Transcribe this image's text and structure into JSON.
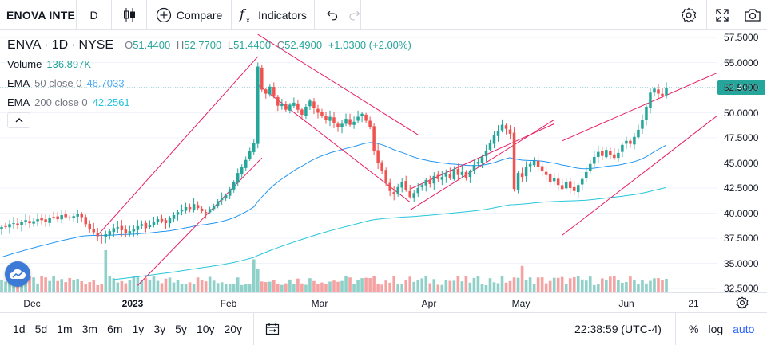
{
  "toolbar": {
    "symbol": "ENOVA INTE",
    "interval": "D",
    "candle_type_icon": "candles-icon",
    "compare_label": "Compare",
    "indicators_label": "Indicators",
    "right_icons": [
      "settings-icon",
      "fullscreen-icon",
      "camera-icon"
    ]
  },
  "legend": {
    "ticker": "ENVA",
    "timeframe": "1D",
    "exchange": "NYSE",
    "open_key": "O",
    "open": "51.4400",
    "high_key": "H",
    "high": "52.7700",
    "low_key": "L",
    "low": "51.4400",
    "close_key": "C",
    "close": "52.4900",
    "change": "+1.0300 (+2.00%)",
    "volume_label": "Volume",
    "volume_value": "136.897K",
    "ema50_label": "EMA",
    "ema50_params": "50 close 0",
    "ema50_value": "46.7033",
    "ema200_label": "EMA",
    "ema200_params": "200 close 0",
    "ema200_value": "42.2561"
  },
  "price_axis": {
    "ticks": [
      "57.5000",
      "55.0000",
      "52.5000",
      "50.0000",
      "47.5000",
      "45.0000",
      "42.5000",
      "40.0000",
      "37.5000",
      "35.0000",
      "32.5000"
    ],
    "last_price": "52.4900"
  },
  "time_axis": {
    "ticks": [
      {
        "label": "Dec",
        "bold": false
      },
      {
        "label": "2023",
        "bold": true
      },
      {
        "label": "Feb",
        "bold": false
      },
      {
        "label": "Mar",
        "bold": false
      },
      {
        "label": "Apr",
        "bold": false
      },
      {
        "label": "May",
        "bold": false
      },
      {
        "label": "Jun",
        "bold": false
      },
      {
        "label": "21",
        "bold": false
      }
    ]
  },
  "bottom_bar": {
    "ranges": [
      "1d",
      "5d",
      "1m",
      "3m",
      "6m",
      "1y",
      "3y",
      "5y",
      "10y",
      "20y"
    ],
    "clock": "22:38:59 (UTC-4)",
    "percent_label": "%",
    "log_label": "log",
    "auto_label": "auto"
  },
  "colors": {
    "up": "#26a69a",
    "down": "#ef5350",
    "ema50": "#2196f3",
    "ema200": "#26c6da",
    "trendline": "#e91e63",
    "accent": "#2962ff"
  },
  "chart_data": {
    "type": "candlestick",
    "symbol": "ENVA",
    "interval": "1D",
    "ylim": [
      32.5,
      57.5
    ],
    "y_ticks": [
      32.5,
      35,
      37.5,
      40,
      42.5,
      45,
      47.5,
      50,
      52.5,
      55,
      57.5
    ],
    "x_tick_labels": [
      "Dec",
      "2023",
      "Feb",
      "Mar",
      "Apr",
      "May",
      "Jun",
      "21"
    ],
    "last": {
      "open": 51.44,
      "high": 52.77,
      "low": 51.44,
      "close": 52.49,
      "volume": "136.897K"
    },
    "close_series": [
      38.6,
      38.7,
      38.9,
      39.0,
      38.8,
      39.1,
      39.3,
      39.0,
      39.2,
      39.4,
      39.3,
      39.1,
      39.5,
      39.6,
      39.4,
      39.8,
      39.6,
      39.5,
      39.7,
      39.9,
      39.6,
      38.9,
      38.4,
      38.1,
      37.7,
      37.6,
      37.9,
      38.2,
      38.5,
      38.6,
      38.3,
      38.0,
      38.2,
      38.4,
      38.7,
      38.9,
      38.5,
      38.8,
      39.1,
      39.4,
      39.2,
      39.0,
      39.5,
      39.8,
      40.1,
      40.3,
      40.6,
      40.4,
      40.9,
      40.5,
      40.2,
      40.0,
      40.4,
      40.7,
      41.2,
      41.5,
      41.8,
      42.4,
      43.1,
      44.0,
      44.6,
      45.3,
      46.2,
      47.0,
      54.6,
      52.3,
      51.9,
      52.6,
      51.6,
      50.7,
      50.9,
      50.3,
      50.8,
      51.0,
      50.3,
      49.8,
      50.6,
      51.2,
      50.5,
      50.0,
      49.7,
      49.3,
      49.6,
      49.0,
      48.6,
      48.9,
      49.4,
      48.8,
      49.1,
      49.6,
      49.9,
      49.2,
      48.6,
      46.2,
      45.0,
      44.2,
      43.1,
      42.2,
      41.9,
      42.6,
      43.1,
      42.3,
      41.6,
      42.0,
      42.5,
      42.8,
      43.3,
      42.9,
      43.7,
      43.4,
      43.6,
      44.0,
      43.5,
      44.4,
      43.8,
      44.1,
      43.5,
      44.2,
      44.8,
      45.1,
      45.6,
      46.2,
      47.0,
      47.8,
      48.2,
      48.8,
      48.4,
      47.9,
      42.4,
      44.0,
      43.6,
      44.6,
      44.9,
      45.2,
      44.6,
      44.2,
      43.8,
      43.1,
      43.5,
      42.8,
      42.4,
      43.1,
      42.5,
      42.2,
      42.8,
      43.4,
      44.1,
      44.9,
      45.6,
      46.1,
      45.7,
      46.3,
      45.8,
      45.5,
      46.0,
      46.8,
      47.2,
      46.9,
      47.6,
      48.3,
      49.3,
      50.6,
      52.0,
      52.4,
      51.9,
      51.7,
      52.49
    ],
    "ema50_label": "EMA 50 close 0",
    "ema200_label": "EMA 200 close 0",
    "volume_label": "Volume"
  }
}
